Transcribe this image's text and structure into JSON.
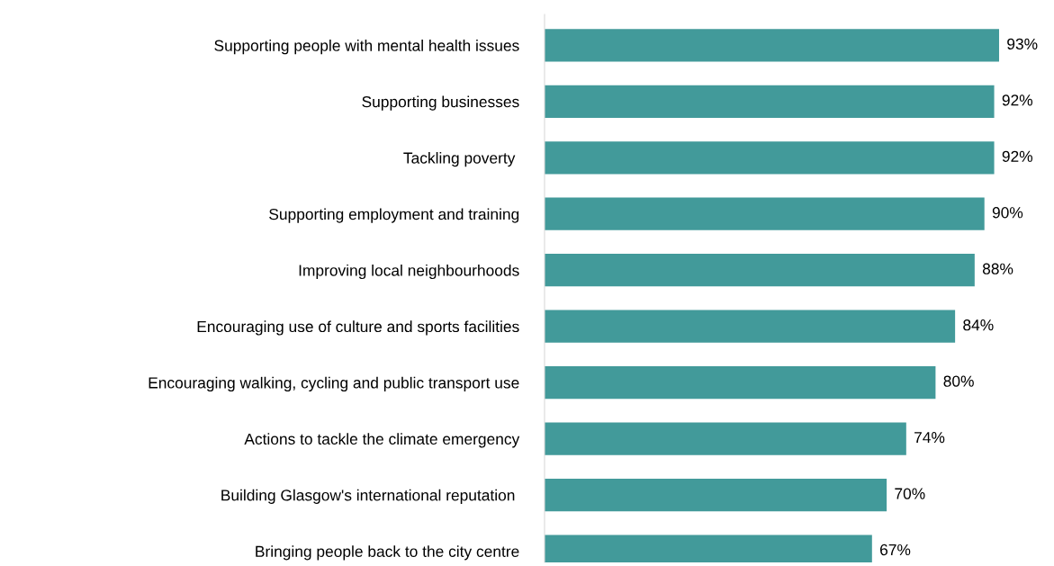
{
  "chart_data": {
    "type": "bar",
    "orientation": "horizontal",
    "categories": [
      "Supporting people with mental health issues",
      "Supporting businesses",
      "Tackling poverty ",
      "Supporting employment and training",
      "Improving local neighbourhoods",
      "Encouraging use of culture and sports facilities",
      "Encouraging walking, cycling and public transport use",
      "Actions to tackle the climate emergency",
      "Building Glasgow's international reputation ",
      "Bringing people back to the city centre"
    ],
    "values": [
      93,
      92,
      92,
      90,
      88,
      84,
      80,
      74,
      70,
      67
    ],
    "value_labels": [
      "93%",
      "92%",
      "92%",
      "90%",
      "88%",
      "84%",
      "80%",
      "74%",
      "70%",
      "67%"
    ],
    "color": "#429a9a",
    "grid": false,
    "legend": false
  }
}
